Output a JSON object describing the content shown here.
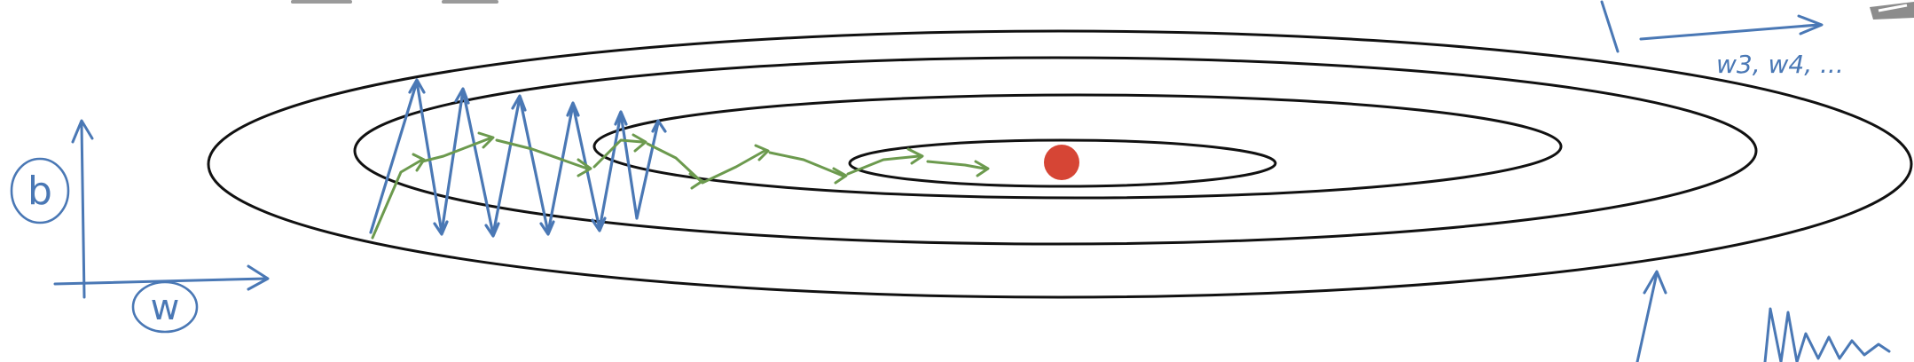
{
  "axes": {
    "vertical_label": "b",
    "horizontal_label": "w"
  },
  "corner_note": "w3, w4, ...",
  "colors": {
    "ink": "#111111",
    "blue_path": "#4a78b5",
    "green_path": "#6c9a4e",
    "minimum_dot": "#d64535",
    "gray_mark": "#9a9a9a"
  },
  "icons": {
    "minimum": "red-dot",
    "oscillating_path": "zigzag-arrows",
    "smooth_path": "chained-arrows"
  }
}
